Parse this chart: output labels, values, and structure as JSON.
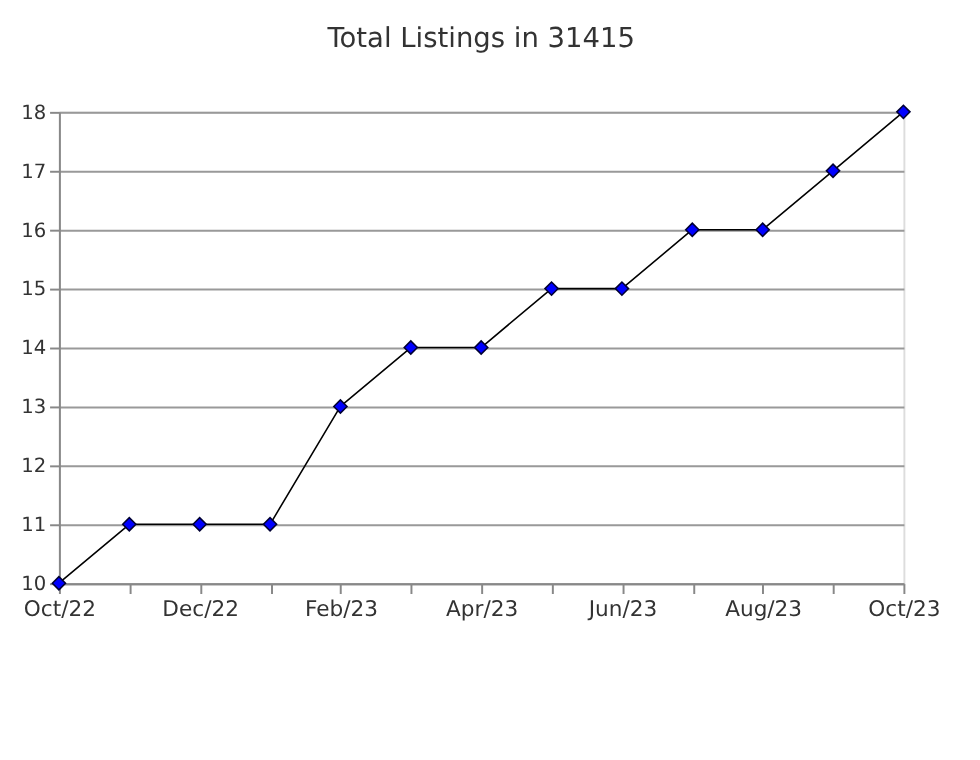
{
  "chart_data": {
    "type": "line",
    "title": "Total Listings in 31415",
    "categories": [
      "Oct/22",
      null,
      "Dec/22",
      null,
      "Feb/23",
      null,
      "Apr/23",
      null,
      "Jun/23",
      null,
      "Aug/23",
      null,
      "Oct/23"
    ],
    "series": [
      {
        "color": "#0000ff",
        "values": [
          10,
          11,
          11,
          11,
          13,
          14,
          14,
          15,
          15,
          16,
          16,
          17,
          18
        ]
      }
    ],
    "ylim": [
      10,
      18
    ],
    "yticks": [
      10,
      11,
      12,
      13,
      14,
      15,
      16,
      17,
      18
    ],
    "grid": "y",
    "marker": "diamond",
    "line_style": "solid"
  }
}
